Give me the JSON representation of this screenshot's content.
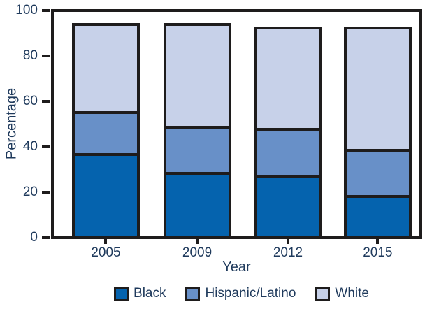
{
  "chart_data": {
    "type": "bar",
    "stacked": true,
    "title": "",
    "xlabel": "Year",
    "ylabel": "Percentage",
    "ylim": [
      0,
      100
    ],
    "yticks": [
      0,
      20,
      40,
      60,
      80,
      100
    ],
    "categories": [
      "2005",
      "2009",
      "2012",
      "2015"
    ],
    "series": [
      {
        "name": "Black",
        "color": "#0563AE",
        "values": [
          37.5,
          29.0,
          27.5,
          18.5
        ]
      },
      {
        "name": "Hispanic/Latino",
        "color": "#6890C8",
        "values": [
          19.0,
          21.0,
          21.5,
          21.0
        ]
      },
      {
        "name": "White",
        "color": "#C7D1E9",
        "values": [
          38.5,
          45.0,
          44.5,
          54.0
        ]
      }
    ],
    "bar_totals": [
      95.0,
      95.0,
      93.5,
      93.5
    ],
    "legend_position": "bottom",
    "grid": false,
    "outline_color": "#1E1C1C",
    "background_color": "#FFFFFF"
  }
}
